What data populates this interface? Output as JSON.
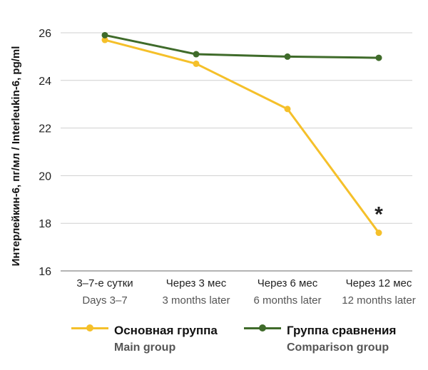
{
  "colors": {
    "main": "#f5c02a",
    "comparison": "#3f6b2a",
    "grid": "#cfcfcf",
    "axis": "#9a9a9a"
  },
  "chart_data": {
    "type": "line",
    "categories": [
      [
        "3–7-е сутки",
        "Days 3–7"
      ],
      [
        "Через 3 мес",
        "3 months later"
      ],
      [
        "Через 6 мес",
        "6 months later"
      ],
      [
        "Через 12 мес",
        "12 months later"
      ]
    ],
    "ylabel": "Интерлейкин-6, пг/мл / Interleukin-6, pg/ml",
    "ylim": [
      16,
      26
    ],
    "yticks": [
      16,
      18,
      20,
      22,
      24,
      26
    ],
    "grid": true,
    "series": [
      {
        "name": [
          "Основная группа",
          "Main group"
        ],
        "values": [
          25.7,
          24.7,
          22.8,
          17.6
        ],
        "color": "#f5c02a"
      },
      {
        "name": [
          "Группа сравнения",
          "Comparison group"
        ],
        "values": [
          25.9,
          25.1,
          25.0,
          24.95
        ],
        "color": "#3f6b2a"
      }
    ],
    "annotations": [
      {
        "text": "*",
        "series": 0,
        "index": 3
      }
    ],
    "legend_position": "bottom"
  }
}
